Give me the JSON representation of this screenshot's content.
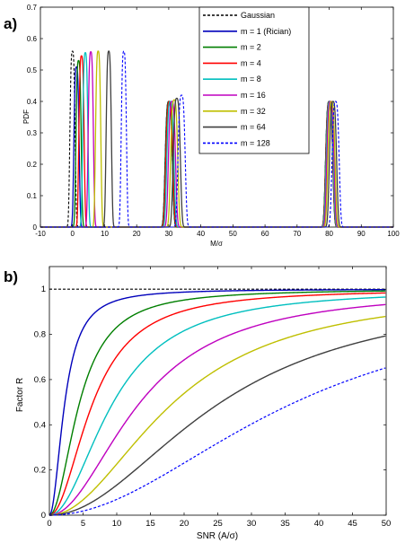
{
  "chart_data": [
    {
      "panel_label": "a)",
      "type": "line",
      "xlabel": "M/σ",
      "ylabel": "PDF",
      "xlim": [
        -10,
        100
      ],
      "ylim": [
        0,
        0.7
      ],
      "xticks": [
        "-10",
        "0",
        "10",
        "20",
        "30",
        "40",
        "50",
        "60",
        "70",
        "80",
        "90",
        "100"
      ],
      "yticks": [
        "0",
        "0.1",
        "0.2",
        "0.3",
        "0.4",
        "0.5",
        "0.6",
        "0.7"
      ],
      "grid": false,
      "legend_position": "top-right",
      "series": [
        {
          "name": "Gaussian",
          "color": "#000000",
          "dashed": true,
          "peaks": [
            [
              0,
              0.56,
              1.9
            ],
            [
              30,
              0.4,
              2.6
            ],
            [
              80,
              0.4,
              2.6
            ]
          ]
        },
        {
          "name": "m = 1 (Rician)",
          "color": "#0000bb",
          "dashed": false,
          "peaks": [
            [
              1.25,
              0.51,
              1.9
            ],
            [
              30.02,
              0.4,
              2.6
            ],
            [
              80.01,
              0.4,
              2.6
            ]
          ]
        },
        {
          "name": "m = 2",
          "color": "#007f00",
          "dashed": false,
          "peaks": [
            [
              1.9,
              0.53,
              1.9
            ],
            [
              30.05,
              0.4,
              2.6
            ],
            [
              80.02,
              0.4,
              2.6
            ]
          ]
        },
        {
          "name": "m = 4",
          "color": "#ff0000",
          "dashed": false,
          "peaks": [
            [
              2.8,
              0.545,
              1.9
            ],
            [
              30.2,
              0.4,
              2.6
            ],
            [
              80.1,
              0.4,
              2.6
            ]
          ]
        },
        {
          "name": "m = 8",
          "color": "#00bfbf",
          "dashed": false,
          "peaks": [
            [
              4.0,
              0.555,
              1.9
            ],
            [
              30.5,
              0.4,
              2.6
            ],
            [
              80.2,
              0.4,
              2.6
            ]
          ]
        },
        {
          "name": "m = 16",
          "color": "#bf00bf",
          "dashed": false,
          "peaks": [
            [
              5.7,
              0.558,
              1.9
            ],
            [
              31.0,
              0.4,
              2.6
            ],
            [
              80.4,
              0.4,
              2.6
            ]
          ]
        },
        {
          "name": "m = 32",
          "color": "#bfbf00",
          "dashed": false,
          "peaks": [
            [
              8.0,
              0.56,
              1.9
            ],
            [
              31.7,
              0.405,
              2.6
            ],
            [
              80.7,
              0.4,
              2.6
            ]
          ]
        },
        {
          "name": "m = 64",
          "color": "#3f3f3f",
          "dashed": false,
          "peaks": [
            [
              11.3,
              0.56,
              1.9
            ],
            [
              32.5,
              0.41,
              2.6
            ],
            [
              81.2,
              0.4,
              2.6
            ]
          ]
        },
        {
          "name": "m = 128",
          "color": "#0000ff",
          "dashed": true,
          "peaks": [
            [
              16.0,
              0.56,
              1.9
            ],
            [
              34.0,
              0.42,
              2.6
            ],
            [
              82.0,
              0.4,
              2.6
            ]
          ]
        }
      ]
    },
    {
      "panel_label": "b)",
      "type": "line",
      "xlabel": "SNR (A/σ)",
      "ylabel": "Factor R",
      "xlim": [
        0,
        50
      ],
      "ylim": [
        0,
        1.1
      ],
      "xticks": [
        "0",
        "5",
        "10",
        "15",
        "20",
        "25",
        "30",
        "35",
        "40",
        "45",
        "50"
      ],
      "yticks": [
        "0",
        "0.2",
        "0.4",
        "0.6",
        "0.8",
        "1"
      ],
      "grid": false,
      "series": [
        {
          "name": "Gaussian",
          "color": "#000000",
          "dashed": true,
          "m": 0
        },
        {
          "name": "m = 1 (Rician)",
          "color": "#0000bb",
          "dashed": false,
          "m": 1
        },
        {
          "name": "m = 2",
          "color": "#007f00",
          "dashed": false,
          "m": 2
        },
        {
          "name": "m = 4",
          "color": "#ff0000",
          "dashed": false,
          "m": 4
        },
        {
          "name": "m = 8",
          "color": "#00bfbf",
          "dashed": false,
          "m": 8
        },
        {
          "name": "m = 16",
          "color": "#bf00bf",
          "dashed": false,
          "m": 16
        },
        {
          "name": "m = 32",
          "color": "#bfbf00",
          "dashed": false,
          "m": 32
        },
        {
          "name": "m = 64",
          "color": "#3f3f3f",
          "dashed": false,
          "m": 64
        },
        {
          "name": "m = 128",
          "color": "#0000ff",
          "dashed": true,
          "m": 128
        }
      ]
    }
  ]
}
